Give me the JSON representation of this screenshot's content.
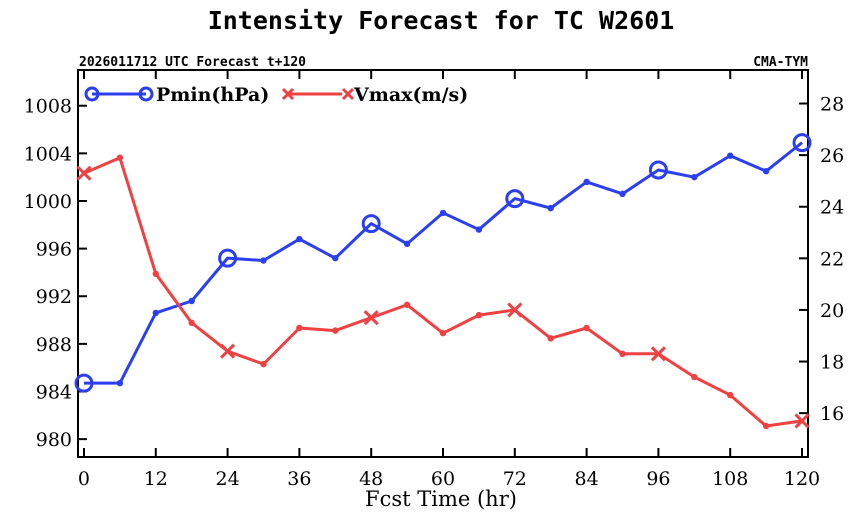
{
  "chart_data": {
    "type": "line",
    "title": "Intensity Forecast for TC W2601",
    "subtitle_left": "2026011712 UTC Forecast t+120",
    "subtitle_right": "CMA-TYM",
    "xlabel": "Fcst Time (hr)",
    "xlim": [
      -1,
      121
    ],
    "xticks": [
      0,
      12,
      24,
      36,
      48,
      60,
      72,
      84,
      96,
      108,
      120
    ],
    "ylim_left": [
      978.5,
      1011
    ],
    "yticks_left": [
      980,
      984,
      988,
      992,
      996,
      1000,
      1004,
      1008
    ],
    "ylim_right": [
      14.3,
      29.3
    ],
    "yticks_right": [
      16,
      18,
      20,
      22,
      24,
      26,
      28
    ],
    "series": [
      {
        "name": "Pmin(hPa)",
        "axis": "left",
        "color": "#2b3ff0",
        "marker": "circle",
        "x": [
          0,
          6,
          12,
          18,
          24,
          30,
          36,
          42,
          48,
          54,
          60,
          66,
          72,
          78,
          84,
          90,
          96,
          102,
          108,
          114,
          120
        ],
        "values": [
          984.7,
          984.7,
          990.6,
          991.6,
          995.2,
          995.0,
          996.8,
          995.2,
          998.1,
          996.4,
          999.0,
          997.6,
          1000.2,
          999.4,
          1001.6,
          1000.6,
          1002.6,
          1002.0,
          1003.8,
          1002.5,
          1004.9
        ],
        "marker_x": [
          0,
          24,
          48,
          72,
          96,
          120
        ]
      },
      {
        "name": "Vmax(m/s)",
        "axis": "right",
        "color": "#ef4142",
        "marker": "x",
        "x": [
          0,
          6,
          12,
          18,
          24,
          30,
          36,
          42,
          48,
          54,
          60,
          66,
          72,
          78,
          84,
          90,
          96,
          102,
          108,
          114,
          120
        ],
        "values": [
          25.3,
          25.9,
          21.4,
          19.5,
          18.4,
          17.9,
          19.3,
          19.2,
          19.7,
          20.2,
          19.1,
          19.8,
          20.0,
          18.9,
          19.3,
          18.3,
          18.3,
          17.4,
          16.7,
          15.5,
          15.7
        ],
        "marker_x": [
          0,
          24,
          48,
          72,
          96,
          120
        ]
      }
    ]
  }
}
